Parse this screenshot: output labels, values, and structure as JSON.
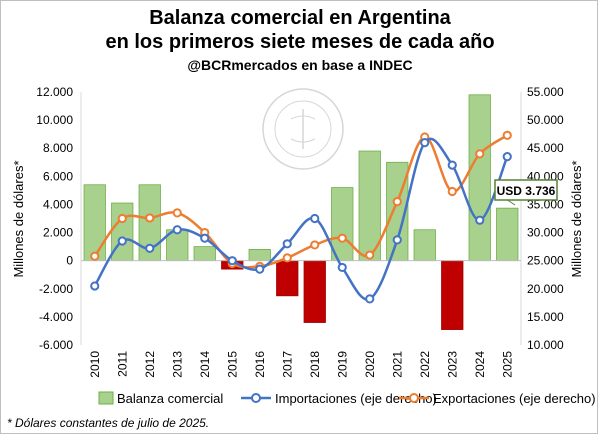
{
  "chart_data": {
    "type": "bar+line",
    "title": "Balanza comercial en Argentina",
    "subtitle": "en los primeros siete meses de cada año",
    "source_line": "@BCRmercados en base a INDEC",
    "ylabel_left": "Millones de dólares*",
    "ylabel_right": "Millones de dólares*",
    "ylim_left": [
      -6000,
      12000
    ],
    "ylim_right": [
      10000,
      55000
    ],
    "y_ticks_left": [
      "-6.000",
      "-4.000",
      "-2.000",
      "0",
      "2.000",
      "4.000",
      "6.000",
      "8.000",
      "10.000",
      "12.000"
    ],
    "y_ticks_right": [
      "10.000",
      "15.000",
      "20.000",
      "25.000",
      "30.000",
      "35.000",
      "40.000",
      "45.000",
      "50.000",
      "55.000"
    ],
    "categories": [
      "2010",
      "2011",
      "2012",
      "2013",
      "2014",
      "2015",
      "2016",
      "2017",
      "2018",
      "2019",
      "2020",
      "2021",
      "2022",
      "2023",
      "2024",
      "2025"
    ],
    "series": [
      {
        "name": "Balanza comercial",
        "axis": "left",
        "kind": "bar",
        "values": [
          5400,
          4100,
          5400,
          2200,
          1000,
          -600,
          800,
          -2500,
          -4400,
          5200,
          7800,
          7000,
          2200,
          -4900,
          11800,
          3736
        ]
      },
      {
        "name": "Importaciones (eje derecho)",
        "axis": "right",
        "kind": "line",
        "values": [
          20500,
          28500,
          27200,
          30500,
          29000,
          25000,
          23500,
          28000,
          32500,
          23800,
          18200,
          28700,
          46000,
          42000,
          32200,
          43500
        ]
      },
      {
        "name": "Exportaciones (eje derecho)",
        "axis": "right",
        "kind": "line",
        "values": [
          25800,
          32500,
          32600,
          33500,
          30000,
          24500,
          24000,
          25500,
          27800,
          29000,
          26000,
          35500,
          47000,
          37300,
          44000,
          47300
        ]
      }
    ],
    "colors": {
      "positive_bar": "#a9d18e",
      "negative_bar": "#c00000",
      "imports": "#4472c4",
      "exports": "#ed7d31"
    },
    "annotation": "USD 3.736",
    "legend_placement": "bottom",
    "grid": false
  },
  "footnote": "* Dólares constantes de julio de 2025."
}
